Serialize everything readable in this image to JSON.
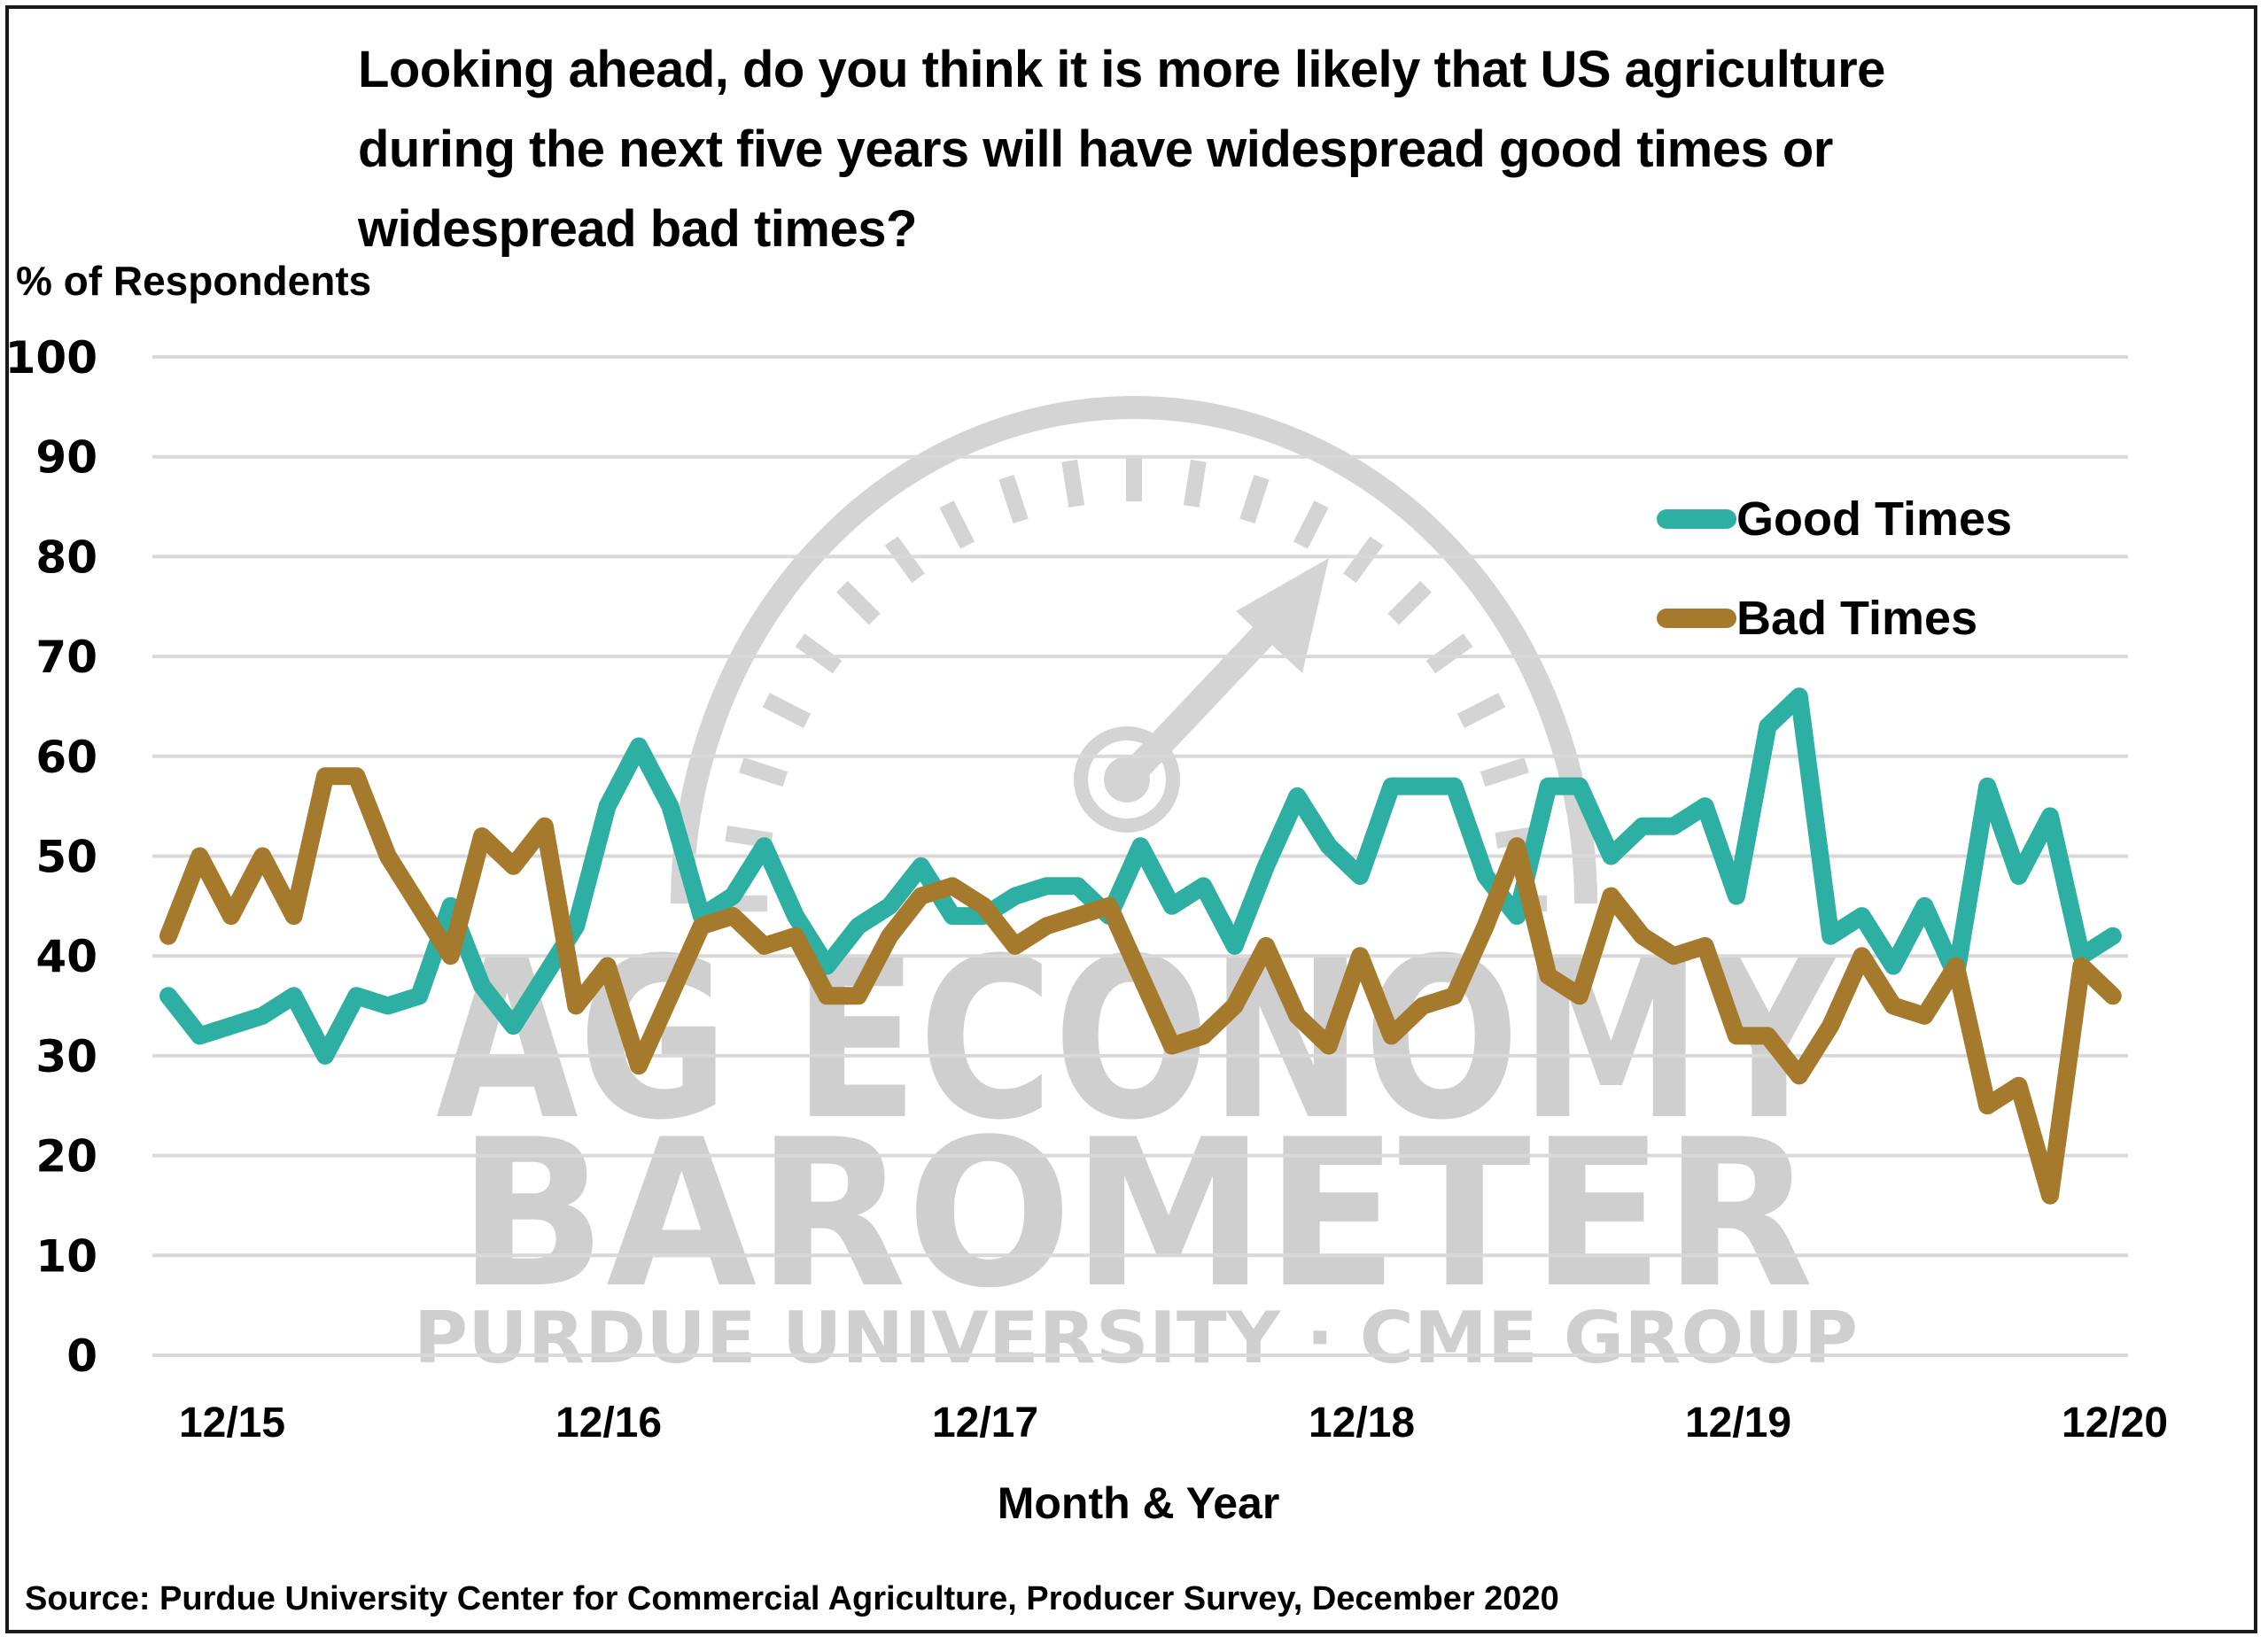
{
  "title": "Looking ahead, do you think it is more likely that US agriculture during the next five years will have widespread good times or widespread bad times?",
  "title_lines": [
    "Looking ahead, do you think it is more likely that US agriculture",
    "during the next five years will have widespread good times or",
    "widespread bad times?"
  ],
  "y_axis_label": "% of Respondents",
  "x_axis_label": "Month & Year",
  "source": "Source: Purdue University Center for Commercial Agriculture, Producer Survey, December 2020",
  "watermark": {
    "line1": "AG ECONOMY",
    "line2": "BAROMETER",
    "line3": "PURDUE UNIVERSITY · CME GROUP",
    "icon": "gauge-icon"
  },
  "legend": [
    {
      "label": "Good Times",
      "color": "#2db0a3"
    },
    {
      "label": "Bad Times",
      "color": "#a67a2d"
    }
  ],
  "chart_data": {
    "type": "line",
    "title": "Looking ahead, do you think it is more likely that US agriculture during the next five years will have widespread good times or widespread bad times?",
    "xlabel": "Month & Year",
    "ylabel": "% of Respondents",
    "ylim": [
      0,
      100
    ],
    "yticks": [
      0,
      10,
      20,
      30,
      40,
      50,
      60,
      70,
      80,
      90,
      100
    ],
    "xtick_labels": [
      "12/15",
      "12/16",
      "12/17",
      "12/18",
      "12/19",
      "12/20"
    ],
    "grid": "horizontal",
    "legend_position": "upper right",
    "x_start": "10/15",
    "x_end": "12/20",
    "series": [
      {
        "name": "Good Times",
        "color": "#2db0a3",
        "values": [
          36,
          32,
          33,
          34,
          36,
          30,
          36,
          35,
          36,
          45,
          37,
          33,
          38,
          43,
          55,
          61,
          55,
          44,
          46,
          51,
          44,
          39,
          43,
          45,
          49,
          44,
          44,
          46,
          47,
          47,
          44,
          51,
          45,
          47,
          41,
          49,
          56,
          51,
          48,
          57,
          57,
          57,
          48,
          44,
          57,
          57,
          50,
          53,
          53,
          55,
          46,
          63,
          66,
          42,
          44,
          39,
          45,
          38,
          57,
          48,
          54,
          40,
          42
        ]
      },
      {
        "name": "Bad Times",
        "color": "#a67a2d",
        "values": [
          42,
          50,
          44,
          50,
          44,
          58,
          58,
          50,
          45,
          40,
          52,
          49,
          53,
          35,
          39,
          29,
          36,
          43,
          44,
          41,
          42,
          36,
          36,
          42,
          46,
          47,
          45,
          41,
          43,
          44,
          45,
          38,
          31,
          32,
          35,
          41,
          34,
          31,
          40,
          32,
          35,
          36,
          43,
          51,
          38,
          36,
          46,
          42,
          40,
          41,
          32,
          32,
          28,
          33,
          40,
          35,
          34,
          39,
          25,
          27,
          16,
          39,
          36
        ]
      }
    ]
  }
}
